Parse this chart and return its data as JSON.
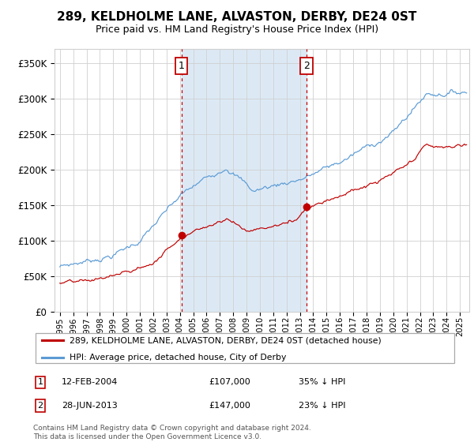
{
  "title": "289, KELDHOLME LANE, ALVASTON, DERBY, DE24 0ST",
  "subtitle": "Price paid vs. HM Land Registry's House Price Index (HPI)",
  "legend_line1": "289, KELDHOLME LANE, ALVASTON, DERBY, DE24 0ST (detached house)",
  "legend_line2": "HPI: Average price, detached house, City of Derby",
  "sale1_date": "12-FEB-2004",
  "sale1_price": 107000,
  "sale1_label": "35% ↓ HPI",
  "sale2_date": "28-JUN-2013",
  "sale2_price": 147000,
  "sale2_label": "23% ↓ HPI",
  "note1": "Contains HM Land Registry data © Crown copyright and database right 2024.",
  "note2": "This data is licensed under the Open Government Licence v3.0.",
  "hpi_color": "#5b9bd5",
  "price_color": "#c00000",
  "sale_marker_color": "#c00000",
  "dashed_line_color": "#c00000",
  "shade_color": "#dce9f5",
  "grid_color": "#d0d0d0",
  "bg_color": "#ffffff",
  "ylim": [
    0,
    370000
  ],
  "yticks": [
    0,
    50000,
    100000,
    150000,
    200000,
    250000,
    300000,
    350000
  ],
  "xlim_start": 1994.6,
  "xlim_end": 2025.7,
  "sale1_x": 2004.12,
  "sale2_x": 2013.49,
  "title_fontsize": 11,
  "subtitle_fontsize": 9
}
